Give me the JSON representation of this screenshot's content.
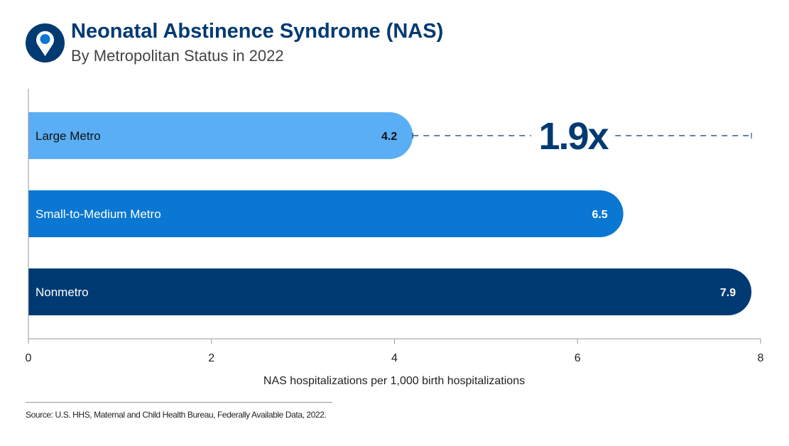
{
  "header": {
    "title": "Neonatal Abstinence Syndrome (NAS)",
    "subtitle": "By Metropolitan Status in 2022",
    "icon": "location-pin-icon"
  },
  "chart_data": {
    "type": "bar",
    "orientation": "horizontal",
    "categories": [
      "Large Metro",
      "Small-to-Medium Metro",
      "Nonmetro"
    ],
    "values": [
      4.2,
      6.5,
      7.9
    ],
    "value_labels": [
      "4.2",
      "6.5",
      "7.9"
    ],
    "colors": [
      "#5aaef4",
      "#0a77d2",
      "#003a72"
    ],
    "label_colors": [
      "#111111",
      "#ffffff",
      "#ffffff"
    ],
    "xlabel": "NAS hospitalizations per 1,000 birth hospitalizations",
    "ylabel": "",
    "xlim": [
      0,
      8
    ],
    "xticks": [
      "0",
      "2",
      "4",
      "6",
      "8"
    ],
    "grid": false,
    "annotation": {
      "text": "1.9x",
      "from": 4.2,
      "to": 7.9,
      "color": "#003a72"
    }
  },
  "footer": {
    "source": "Source: U.S. HHS, Maternal and Child Health Bureau, Federally Available Data, 2022."
  }
}
